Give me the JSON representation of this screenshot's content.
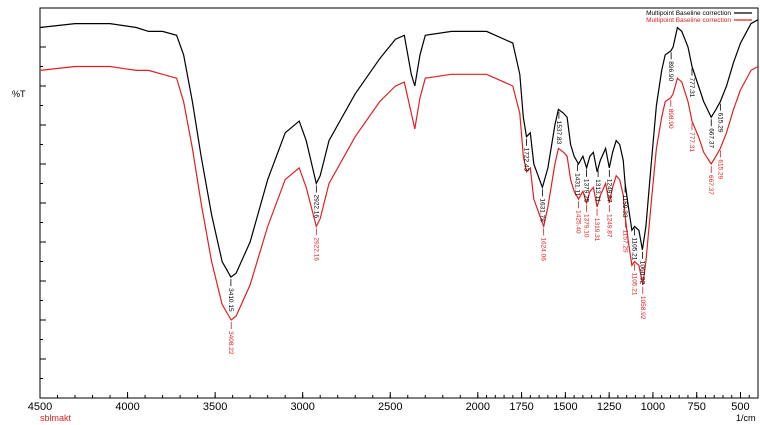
{
  "chart_data": {
    "type": "line",
    "title": "",
    "ylabel": "%T",
    "xlabel": "1/cm",
    "source_label": "sblmakt",
    "xlim": [
      4500,
      400
    ],
    "ylim": [
      0,
      100
    ],
    "x_ticks": [
      4500,
      4000,
      3500,
      3000,
      2500,
      2000,
      1750,
      1500,
      1250,
      1000,
      750,
      500
    ],
    "colors": {
      "black": "#000000",
      "red": "#e02020"
    },
    "legend": {
      "placement": "top-right"
    },
    "series": [
      {
        "name": "Multipoint Baseline correction",
        "color": "#000000",
        "points": [
          [
            4500,
            95
          ],
          [
            4300,
            96
          ],
          [
            4100,
            96
          ],
          [
            3950,
            95
          ],
          [
            3880,
            94
          ],
          [
            3800,
            94
          ],
          [
            3720,
            93
          ],
          [
            3680,
            88
          ],
          [
            3630,
            76
          ],
          [
            3580,
            62
          ],
          [
            3520,
            47
          ],
          [
            3460,
            35
          ],
          [
            3410,
            31
          ],
          [
            3380,
            32
          ],
          [
            3300,
            40
          ],
          [
            3200,
            56
          ],
          [
            3100,
            68
          ],
          [
            3020,
            71
          ],
          [
            2980,
            66
          ],
          [
            2922,
            55
          ],
          [
            2900,
            57
          ],
          [
            2850,
            66
          ],
          [
            2700,
            78
          ],
          [
            2560,
            87
          ],
          [
            2470,
            92
          ],
          [
            2420,
            93
          ],
          [
            2380,
            83
          ],
          [
            2360,
            80
          ],
          [
            2330,
            88
          ],
          [
            2300,
            93
          ],
          [
            2150,
            94
          ],
          [
            1950,
            94
          ],
          [
            1800,
            91
          ],
          [
            1760,
            83
          ],
          [
            1740,
            72
          ],
          [
            1722,
            67
          ],
          [
            1700,
            68
          ],
          [
            1680,
            60
          ],
          [
            1631,
            54
          ],
          [
            1600,
            59
          ],
          [
            1560,
            70
          ],
          [
            1540,
            74
          ],
          [
            1510,
            73
          ],
          [
            1490,
            72
          ],
          [
            1470,
            65
          ],
          [
            1450,
            62
          ],
          [
            1425,
            60
          ],
          [
            1400,
            62
          ],
          [
            1379,
            59
          ],
          [
            1360,
            62
          ],
          [
            1340,
            63
          ],
          [
            1319,
            58
          ],
          [
            1300,
            61
          ],
          [
            1270,
            64
          ],
          [
            1249,
            59
          ],
          [
            1230,
            63
          ],
          [
            1210,
            66
          ],
          [
            1190,
            65
          ],
          [
            1170,
            61
          ],
          [
            1159,
            55
          ],
          [
            1140,
            49
          ],
          [
            1120,
            43
          ],
          [
            1105,
            44
          ],
          [
            1080,
            43
          ],
          [
            1060,
            38
          ],
          [
            1040,
            44
          ],
          [
            1010,
            60
          ],
          [
            980,
            75
          ],
          [
            950,
            84
          ],
          [
            930,
            88
          ],
          [
            898,
            89
          ],
          [
            885,
            90
          ],
          [
            860,
            95
          ],
          [
            835,
            94
          ],
          [
            800,
            90
          ],
          [
            777,
            85
          ],
          [
            740,
            80
          ],
          [
            710,
            76
          ],
          [
            667,
            72
          ],
          [
            640,
            74
          ],
          [
            615,
            76
          ],
          [
            580,
            80
          ],
          [
            540,
            86
          ],
          [
            500,
            91
          ],
          [
            440,
            96
          ],
          [
            400,
            97
          ]
        ]
      },
      {
        "name": "Multipoint Baseline correction",
        "color": "#e02020",
        "points": [
          [
            4500,
            84
          ],
          [
            4300,
            85
          ],
          [
            4100,
            85
          ],
          [
            3950,
            84
          ],
          [
            3880,
            84
          ],
          [
            3800,
            83
          ],
          [
            3720,
            82
          ],
          [
            3680,
            76
          ],
          [
            3630,
            64
          ],
          [
            3580,
            50
          ],
          [
            3520,
            35
          ],
          [
            3460,
            24
          ],
          [
            3408,
            20
          ],
          [
            3380,
            21
          ],
          [
            3300,
            29
          ],
          [
            3200,
            44
          ],
          [
            3100,
            56
          ],
          [
            3020,
            59
          ],
          [
            2980,
            54
          ],
          [
            2922,
            44
          ],
          [
            2900,
            46
          ],
          [
            2850,
            55
          ],
          [
            2700,
            67
          ],
          [
            2560,
            76
          ],
          [
            2470,
            80
          ],
          [
            2420,
            81
          ],
          [
            2380,
            73
          ],
          [
            2360,
            69
          ],
          [
            2330,
            77
          ],
          [
            2300,
            82
          ],
          [
            2150,
            83
          ],
          [
            1950,
            83
          ],
          [
            1800,
            80
          ],
          [
            1760,
            73
          ],
          [
            1740,
            62
          ],
          [
            1722,
            58
          ],
          [
            1700,
            59
          ],
          [
            1680,
            51
          ],
          [
            1624,
            44
          ],
          [
            1600,
            49
          ],
          [
            1560,
            60
          ],
          [
            1540,
            64
          ],
          [
            1510,
            63
          ],
          [
            1490,
            62
          ],
          [
            1470,
            56
          ],
          [
            1450,
            53
          ],
          [
            1425,
            51
          ],
          [
            1400,
            53
          ],
          [
            1379,
            50
          ],
          [
            1360,
            53
          ],
          [
            1340,
            54
          ],
          [
            1319,
            49
          ],
          [
            1300,
            52
          ],
          [
            1270,
            55
          ],
          [
            1249,
            50
          ],
          [
            1230,
            54
          ],
          [
            1210,
            57
          ],
          [
            1190,
            56
          ],
          [
            1170,
            52
          ],
          [
            1157,
            46
          ],
          [
            1140,
            40
          ],
          [
            1120,
            34
          ],
          [
            1105,
            35
          ],
          [
            1080,
            34
          ],
          [
            1058,
            29
          ],
          [
            1040,
            35
          ],
          [
            1010,
            50
          ],
          [
            980,
            64
          ],
          [
            950,
            72
          ],
          [
            930,
            76
          ],
          [
            898,
            77
          ],
          [
            885,
            78
          ],
          [
            860,
            82
          ],
          [
            835,
            81
          ],
          [
            800,
            76
          ],
          [
            777,
            71
          ],
          [
            740,
            67
          ],
          [
            710,
            63
          ],
          [
            667,
            60
          ],
          [
            640,
            62
          ],
          [
            615,
            64
          ],
          [
            580,
            68
          ],
          [
            540,
            74
          ],
          [
            500,
            79
          ],
          [
            440,
            84
          ],
          [
            400,
            85
          ]
        ]
      }
    ],
    "annotations": [
      {
        "text": "3410.15",
        "series": 0,
        "x": 3410
      },
      {
        "text": "2922.16",
        "series": 0,
        "x": 2922
      },
      {
        "text": "1722.43",
        "series": 0,
        "x": 1722
      },
      {
        "text": "1631.78",
        "series": 0,
        "x": 1631
      },
      {
        "text": "1537.83",
        "series": 0,
        "x": 1537
      },
      {
        "text": "1431.11",
        "series": 0,
        "x": 1431
      },
      {
        "text": "1379.25",
        "series": 0,
        "x": 1379
      },
      {
        "text": "1313.11",
        "series": 0,
        "x": 1313
      },
      {
        "text": "1249.87",
        "series": 0,
        "x": 1249
      },
      {
        "text": "1159.33",
        "series": 0,
        "x": 1159
      },
      {
        "text": "1105.21",
        "series": 0,
        "x": 1105
      },
      {
        "text": "1060.92",
        "series": 0,
        "x": 1060
      },
      {
        "text": "896.90",
        "series": 0,
        "x": 896
      },
      {
        "text": "777.31",
        "series": 0,
        "x": 777
      },
      {
        "text": "667.37",
        "series": 0,
        "x": 667
      },
      {
        "text": "615.29",
        "series": 0,
        "x": 615
      },
      {
        "text": "3408.22",
        "series": 1,
        "x": 3408
      },
      {
        "text": "2922.16",
        "series": 1,
        "x": 2922
      },
      {
        "text": "1624.06",
        "series": 1,
        "x": 1624
      },
      {
        "text": "1425.40",
        "series": 1,
        "x": 1425
      },
      {
        "text": "1379.10",
        "series": 1,
        "x": 1379
      },
      {
        "text": "1319.31",
        "series": 1,
        "x": 1319
      },
      {
        "text": "1249.87",
        "series": 1,
        "x": 1249
      },
      {
        "text": "1157.29",
        "series": 1,
        "x": 1157
      },
      {
        "text": "1105.21",
        "series": 1,
        "x": 1105
      },
      {
        "text": "1058.92",
        "series": 1,
        "x": 1058
      },
      {
        "text": "898.90",
        "series": 1,
        "x": 898
      },
      {
        "text": "777.31",
        "series": 1,
        "x": 777
      },
      {
        "text": "667.37",
        "series": 1,
        "x": 667
      },
      {
        "text": "615.29",
        "series": 1,
        "x": 615
      }
    ]
  }
}
